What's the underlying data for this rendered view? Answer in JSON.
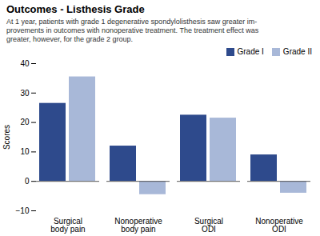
{
  "chart_data": {
    "type": "bar",
    "title": "Outcomes - Listhesis Grade",
    "subtitle": "At 1 year, patients with grade 1 degenerative spondylolisthesis saw greater im-\nprovements in outcomes with nonoperative treatment. The treatment effect was\ngreater, however, for the grade 2 group.",
    "categories": [
      "Surgical\nbody pain",
      "Nonoperative\nbody pain",
      "Surgical\nODI",
      "Nonoperative\nODI"
    ],
    "series": [
      {
        "name": "Grade I",
        "color": "#2E4A8C",
        "values": [
          26.5,
          12.0,
          22.5,
          9.0
        ]
      },
      {
        "name": "Grade II",
        "color": "#A8B8D8",
        "values": [
          35.5,
          -4.5,
          21.5,
          -4.0
        ]
      }
    ],
    "ylabel": "Scores",
    "ylim": [
      -10,
      40
    ],
    "yticks": [
      -10,
      0,
      10,
      20,
      30,
      40
    ],
    "legend": "upper right"
  }
}
